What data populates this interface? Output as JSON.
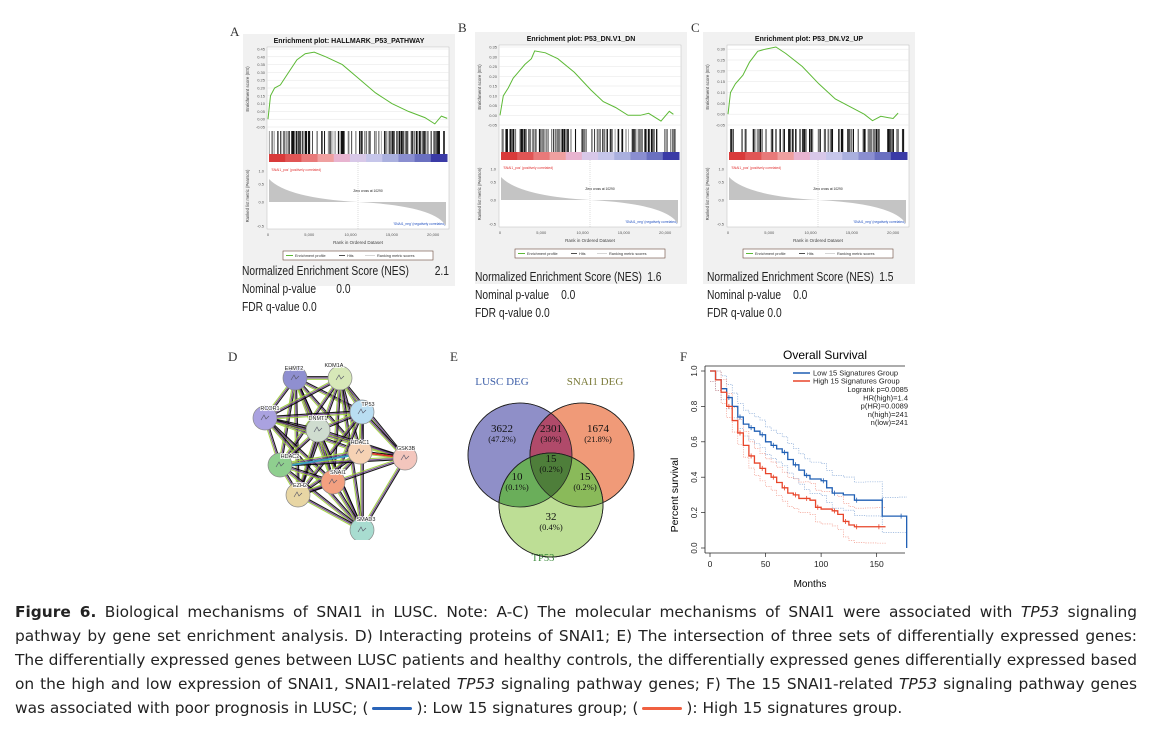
{
  "panels": {
    "A": {
      "letter": "A",
      "title": "Enrichment plot: HALLMARK_P53_PATHWAY",
      "yticks": [
        "0.45",
        "0.40",
        "0.35",
        "0.30",
        "0.25",
        "0.20",
        "0.15",
        "0.10",
        "0.05",
        "0.00",
        "-0.05"
      ],
      "ymax": 0.45,
      "ymin": -0.05,
      "peak": 0.43,
      "es_curve": [
        [
          0,
          0
        ],
        [
          300,
          0.15
        ],
        [
          800,
          0.2
        ],
        [
          1500,
          0.22
        ],
        [
          2500,
          0.3
        ],
        [
          3500,
          0.38
        ],
        [
          4500,
          0.42
        ],
        [
          5600,
          0.43
        ],
        [
          7000,
          0.4
        ],
        [
          9000,
          0.35
        ],
        [
          11000,
          0.26
        ],
        [
          13000,
          0.17
        ],
        [
          15000,
          0.1
        ],
        [
          17000,
          0.05
        ],
        [
          19000,
          0.01
        ],
        [
          20200,
          -0.03
        ],
        [
          21000,
          0.02
        ],
        [
          21700,
          0.005
        ]
      ],
      "es_ylabel": "Enrichment score (ES)",
      "rank_ylabel": "Ranked list metric (Pearson)",
      "rank_yticks": [
        "1.0",
        "0.5",
        "0.0",
        "-0.5"
      ],
      "pos_label": "'SNAI1_pos' (positively correlated)",
      "neg_label": "'SNAI1_neg' (negatively correlated)",
      "zero_cross": "Zero cross at 10290",
      "xticks": [
        "0",
        "5,000",
        "10,000",
        "15,000",
        "20,000"
      ],
      "xlabel": "Rank in Ordered Dataset",
      "legend": [
        "Enrichment profile",
        "Hits",
        "Ranking metric scores"
      ],
      "nes_label": "Normalized Enrichment Score (NES)",
      "nes": "2.1",
      "p_label": "Nominal p-value",
      "p": "0.0",
      "fdr_label": "FDR q-value",
      "fdr": "0.0"
    },
    "B": {
      "letter": "B",
      "title": "Enrichment plot: P53_DN.V1_DN",
      "yticks": [
        "0.35",
        "0.30",
        "0.25",
        "0.20",
        "0.15",
        "0.10",
        "0.05",
        "0.00",
        "-0.05"
      ],
      "ymax": 0.35,
      "ymin": -0.05,
      "peak": 0.33,
      "es_curve": [
        [
          0,
          0
        ],
        [
          400,
          0.1
        ],
        [
          1000,
          0.14
        ],
        [
          1600,
          0.19
        ],
        [
          2200,
          0.22
        ],
        [
          3000,
          0.26
        ],
        [
          3800,
          0.29
        ],
        [
          4200,
          0.33
        ],
        [
          5500,
          0.32
        ],
        [
          7000,
          0.29
        ],
        [
          9000,
          0.22
        ],
        [
          11000,
          0.13
        ],
        [
          12500,
          0.07
        ],
        [
          14000,
          0.04
        ],
        [
          15500,
          0.0
        ],
        [
          17000,
          0.0
        ],
        [
          18000,
          0.01
        ],
        [
          19500,
          -0.03
        ],
        [
          20500,
          0.02
        ],
        [
          21000,
          0.005
        ]
      ],
      "es_ylabel": "Enrichment score (ES)",
      "rank_ylabel": "Ranked list metric (Pearson)",
      "rank_yticks": [
        "1.0",
        "0.5",
        "0.0",
        "-0.5"
      ],
      "pos_label": "'SNAI1_pos' (positively correlated)",
      "neg_label": "'SNAI1_neg' (negatively correlated)",
      "zero_cross": "Zero cross at 10290",
      "xticks": [
        "0",
        "5,000",
        "10,000",
        "15,000",
        "20,000"
      ],
      "xlabel": "Rank in Ordered Dataset",
      "legend": [
        "Enrichment profile",
        "Hits",
        "Ranking metric scores"
      ],
      "nes_label": "Normalized Enrichment Score (NES)",
      "nes": "1.6",
      "p_label": "Nominal p-value",
      "p": "0.0",
      "fdr_label": "FDR q-value",
      "fdr": "0.0"
    },
    "C": {
      "letter": "C",
      "title": "Enrichment plot: P53_DN.V2_UP",
      "yticks": [
        "0.30",
        "0.25",
        "0.20",
        "0.15",
        "0.10",
        "0.05",
        "0.00",
        "-0.05"
      ],
      "ymax": 0.31,
      "ymin": -0.05,
      "peak": 0.31,
      "es_curve": [
        [
          0,
          0
        ],
        [
          300,
          0.1
        ],
        [
          900,
          0.14
        ],
        [
          1800,
          0.18
        ],
        [
          2600,
          0.24
        ],
        [
          3600,
          0.29
        ],
        [
          4500,
          0.3
        ],
        [
          5800,
          0.31
        ],
        [
          7000,
          0.28
        ],
        [
          9000,
          0.22
        ],
        [
          11000,
          0.14
        ],
        [
          13000,
          0.07
        ],
        [
          15000,
          0.03
        ],
        [
          16500,
          0.0
        ],
        [
          17500,
          -0.03
        ],
        [
          18500,
          -0.01
        ],
        [
          20000,
          -0.02
        ],
        [
          20600,
          0.005
        ]
      ],
      "es_ylabel": "Enrichment score (ES)",
      "rank_ylabel": "Ranked list metric (Pearson)",
      "rank_yticks": [
        "1.0",
        "0.5",
        "0.0",
        "-0.5"
      ],
      "pos_label": "'SNAI1_pos' (positively correlated)",
      "neg_label": "'SNAI1_neg' (negatively correlated)",
      "zero_cross": "Zero cross at 10290",
      "xticks": [
        "0",
        "5,000",
        "10,000",
        "15,000",
        "20,000"
      ],
      "xlabel": "Rank in Ordered Dataset",
      "legend": [
        "Enrichment profile",
        "Hits",
        "Ranking metric scores"
      ],
      "nes_label": "Normalized Enrichment Score (NES)",
      "nes": "1.5",
      "p_label": "Nominal p-value",
      "p": "0.0",
      "fdr_label": "FDR q-value",
      "fdr": "0.0"
    }
  },
  "network": {
    "letter": "D",
    "nodes": [
      {
        "name": "EHMT2",
        "color": "#8f8fd0"
      },
      {
        "name": "KDM1A",
        "color": "#d7e8b8"
      },
      {
        "name": "RCOR1",
        "color": "#aaa2e0"
      },
      {
        "name": "TP53",
        "color": "#b9ddf2"
      },
      {
        "name": "DNMT1",
        "color": "#cfdccf"
      },
      {
        "name": "HDAC1",
        "color": "#f6d2b4"
      },
      {
        "name": "GSK3B",
        "color": "#f3c6bd"
      },
      {
        "name": "HDAC2",
        "color": "#8fcf8f"
      },
      {
        "name": "SNAI1",
        "color": "#f3a080"
      },
      {
        "name": "EZH2",
        "color": "#e8d6a4"
      },
      {
        "name": "SMAD3",
        "color": "#a8dcd0"
      }
    ],
    "edge_colors": [
      "#000000",
      "#9ccf3a",
      "#6a3c8c",
      "#3a9ec2",
      "#1a1a1a",
      "#e0302a"
    ]
  },
  "venn": {
    "letter": "E",
    "sets": [
      {
        "name": "LUSC DEG",
        "color": "#3d5fa8",
        "fill": "#8f8fc8"
      },
      {
        "name": "SNAI1 DEG",
        "color": "#7b7b3a",
        "fill": "#f09a78"
      },
      {
        "name": "TP53",
        "color": "#3a8a3a",
        "fill": "#b9dc8f"
      }
    ],
    "regions": [
      {
        "id": "lusc_only",
        "count": "3622",
        "pct": "(47.2%)"
      },
      {
        "id": "lusc_snai1",
        "count": "2301",
        "pct": "(30%)"
      },
      {
        "id": "snai1_only",
        "count": "1674",
        "pct": "(21.8%)"
      },
      {
        "id": "all_three",
        "count": "15",
        "pct": "(0.2%)"
      },
      {
        "id": "lusc_tp53",
        "count": "10",
        "pct": "(0.1%)"
      },
      {
        "id": "snai1_tp53",
        "count": "15",
        "pct": "(0.2%)"
      },
      {
        "id": "tp53_only",
        "count": "32",
        "pct": "(0.4%)"
      }
    ]
  },
  "chart_data": {
    "type": "line",
    "title": "Overall Survival",
    "xlabel": "Months",
    "ylabel": "Percent survival",
    "xlim": [
      0,
      180
    ],
    "ylim": [
      0,
      1.0
    ],
    "xticks": [
      "0",
      "50",
      "100",
      "150"
    ],
    "yticks": [
      "0.0",
      "0.2",
      "0.4",
      "0.6",
      "0.8",
      "1.0"
    ],
    "legend_position": "top-right",
    "series": [
      {
        "name": "Low 15 Signatures Group",
        "color": "#1f5fb4",
        "x": [
          0,
          5,
          10,
          15,
          20,
          25,
          30,
          35,
          40,
          45,
          50,
          55,
          60,
          65,
          70,
          75,
          80,
          85,
          90,
          100,
          105,
          110,
          120,
          130,
          140,
          153,
          155,
          170,
          177,
          177
        ],
        "y": [
          1.0,
          0.95,
          0.9,
          0.85,
          0.8,
          0.74,
          0.7,
          0.68,
          0.66,
          0.64,
          0.6,
          0.58,
          0.56,
          0.54,
          0.5,
          0.47,
          0.44,
          0.41,
          0.39,
          0.38,
          0.34,
          0.31,
          0.3,
          0.27,
          0.27,
          0.27,
          0.18,
          0.18,
          0.18,
          0.0
        ]
      },
      {
        "name": "High 15 Signatures Group",
        "color": "#e8452a",
        "x": [
          0,
          5,
          10,
          15,
          20,
          25,
          30,
          35,
          40,
          45,
          50,
          55,
          60,
          65,
          70,
          75,
          80,
          85,
          90,
          95,
          100,
          110,
          115,
          120,
          125,
          130,
          140,
          150,
          158
        ],
        "y": [
          1.0,
          0.95,
          0.88,
          0.8,
          0.72,
          0.65,
          0.58,
          0.52,
          0.48,
          0.45,
          0.42,
          0.4,
          0.37,
          0.34,
          0.31,
          0.3,
          0.28,
          0.28,
          0.27,
          0.23,
          0.22,
          0.21,
          0.19,
          0.15,
          0.13,
          0.12,
          0.12,
          0.12,
          0.12
        ]
      }
    ],
    "annotations": [
      "Logrank p=0.0085",
      "HR(high)=1.4",
      "p(HR)=0.0089",
      "n(high)=241",
      "n(low)=241"
    ],
    "panel_letter": "F"
  },
  "caption": {
    "label": "Figure 6.",
    "p1": " Biological mechanisms of SNAI1 in LUSC. Note: A-C) The molecular mechanisms of SNAI1 were associated with ",
    "tp53_a": "TP53",
    "p2": " signaling pathway by gene set enrichment analysis. D) Interacting proteins of SNAI1; E) The intersection of three sets of differentially expressed genes: The differentially expressed genes between LUSC patients and healthy controls, the differentially expressed genes differentially expressed based on the high and low expression of SNAI1, SNAI1-related ",
    "tp53_b": "TP53",
    "p3": " signaling pathway genes; F) The 15 SNAI1-related ",
    "tp53_c": "TP53",
    "p4": " signaling pathway genes was associated with poor prognosis in LUSC; (",
    "p5": "): Low 15 signatures group; (",
    "p6": "): High 15 signatures group.",
    "low_color": "#2a64b8",
    "high_color": "#f06040"
  }
}
